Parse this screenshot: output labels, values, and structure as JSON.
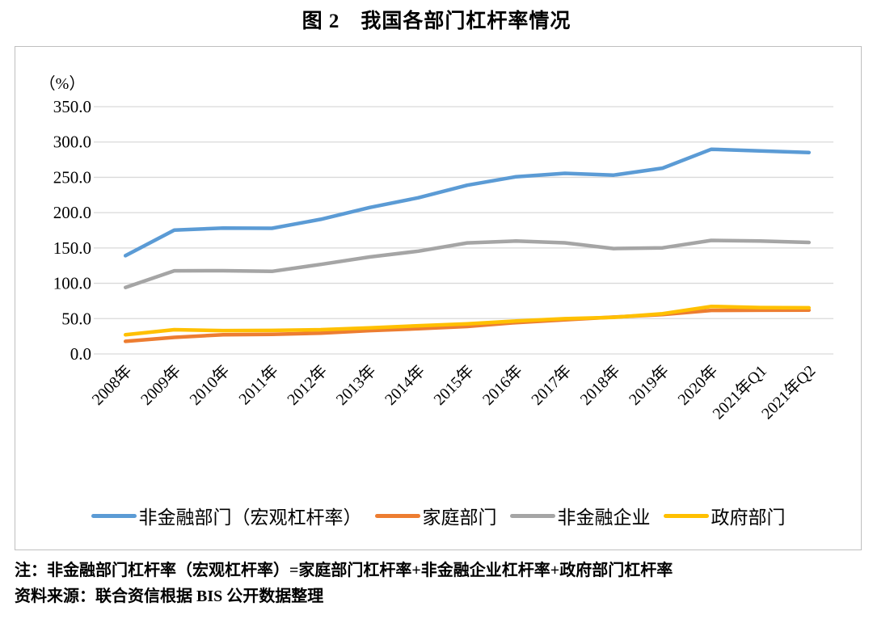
{
  "chart_data": {
    "type": "line",
    "title": "图 2　我国各部门杠杆率情况",
    "unit_label": "（%）",
    "ylim": [
      0,
      350
    ],
    "ytick_step": 50,
    "ytick_labels": [
      "0.0",
      "50.0",
      "100.0",
      "150.0",
      "200.0",
      "250.0",
      "300.0",
      "350.0"
    ],
    "grid": true,
    "legend_position": "bottom",
    "gridline_color": "#d9d9d9",
    "border_color": "#bfbfbf",
    "categories": [
      "2008年",
      "2009年",
      "2010年",
      "2011年",
      "2012年",
      "2013年",
      "2014年",
      "2015年",
      "2016年",
      "2017年",
      "2018年",
      "2019年",
      "2020年",
      "2021年Q1",
      "2021年Q2"
    ],
    "series": [
      {
        "name": "非金融部门（宏观杠杆率）",
        "color": "#5b9bd5",
        "values": [
          139.1,
          175.4,
          178.1,
          177.9,
          190.5,
          207.2,
          221.1,
          238.8,
          250.8,
          255.6,
          253.1,
          263.0,
          289.7,
          287.4,
          285.1
        ]
      },
      {
        "name": "家庭部门",
        "color": "#ed7d31",
        "values": [
          17.9,
          23.4,
          27.2,
          27.7,
          29.5,
          33.0,
          35.7,
          38.9,
          44.4,
          48.4,
          52.1,
          55.8,
          61.7,
          61.9,
          62.0
        ]
      },
      {
        "name": "非金融企业",
        "color": "#a5a5a5",
        "values": [
          94.1,
          117.7,
          117.8,
          116.9,
          126.7,
          137.2,
          145.5,
          157.2,
          159.8,
          157.3,
          149.2,
          150.2,
          160.7,
          159.8,
          157.8
        ]
      },
      {
        "name": "政府部门",
        "color": "#ffc000",
        "values": [
          27.1,
          34.3,
          33.1,
          33.3,
          34.3,
          37.0,
          39.9,
          42.7,
          46.6,
          49.9,
          51.8,
          57.0,
          67.3,
          65.7,
          65.3
        ]
      }
    ]
  },
  "notes": {
    "definition": "注：非金融部门杠杆率（宏观杠杆率）=家庭部门杠杆率+非金融企业杠杆率+政府部门杠杆率",
    "source": "资料来源：联合资信根据 BIS 公开数据整理"
  }
}
